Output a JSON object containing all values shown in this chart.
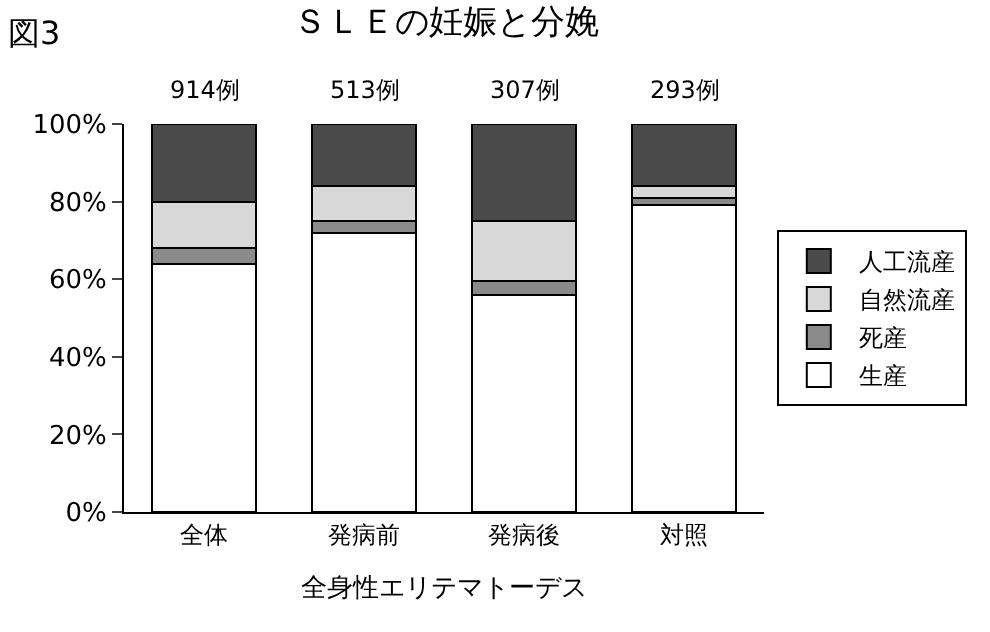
{
  "chart_data": {
    "type": "bar",
    "stacked": true,
    "title": "ＳＬＥの妊娠と分娩",
    "xlabel": "全身性エリテマトーデス",
    "categories": [
      "全体",
      "発病前",
      "発病後",
      "対照"
    ],
    "series": [
      {
        "name": "生産",
        "color": "#ffffff",
        "values": [
          64,
          72,
          56,
          79
        ]
      },
      {
        "name": "死産",
        "color": "#8a8a8a",
        "values": [
          4,
          3,
          3.5,
          2
        ]
      },
      {
        "name": "自然流産",
        "color": "#d8d8d8",
        "values": [
          12,
          9,
          15.5,
          3
        ]
      },
      {
        "name": "人工流産",
        "color": "#4a4a4a",
        "values": [
          20,
          16,
          25,
          16
        ]
      }
    ],
    "ylim": [
      0,
      100
    ],
    "yticks": [
      {
        "value": 0,
        "label": "0%"
      },
      {
        "value": 20,
        "label": "20%"
      },
      {
        "value": 40,
        "label": "40%"
      },
      {
        "value": 60,
        "label": "60%"
      },
      {
        "value": 80,
        "label": "80%"
      },
      {
        "value": 100,
        "label": "100%"
      }
    ],
    "annotations": [
      "図3",
      "914例",
      "513例",
      "307例",
      "293例"
    ],
    "grid": false,
    "legend": "right"
  }
}
